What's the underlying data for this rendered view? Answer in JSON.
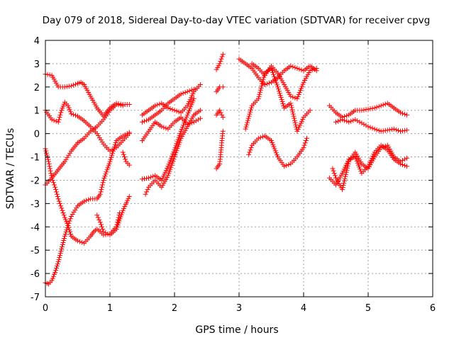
{
  "chart_data": {
    "type": "scatter",
    "title": "Day 079 of 2018, Sidereal Day-to-day VTEC variation (SDTVAR) for receiver cpvg",
    "xlabel": "GPS time / hours",
    "ylabel": "SDTVAR / TECUs",
    "xlim": [
      0,
      6
    ],
    "ylim": [
      -7,
      4
    ],
    "xticks": [
      0,
      1,
      2,
      3,
      4,
      5,
      6
    ],
    "yticks": [
      -7,
      -6,
      -5,
      -4,
      -3,
      -2,
      -1,
      0,
      1,
      2,
      3,
      4
    ],
    "grid": true,
    "marker": "+",
    "color": "#ff0000",
    "series": [
      {
        "x": [
          0.0,
          0.1,
          0.2,
          0.3,
          0.4,
          0.5,
          0.55,
          0.6,
          0.7,
          0.8,
          0.9,
          1.0,
          1.1,
          1.2,
          1.3
        ],
        "y": [
          2.55,
          2.5,
          2.0,
          2.0,
          2.05,
          2.15,
          2.2,
          2.1,
          1.6,
          1.1,
          0.75,
          1.1,
          1.3,
          1.25,
          1.25
        ]
      },
      {
        "x": [
          0.0,
          0.1,
          0.2,
          0.25,
          0.3,
          0.35,
          0.4,
          0.5,
          0.6,
          0.7,
          0.8,
          0.9,
          1.0,
          1.1,
          1.2,
          1.3
        ],
        "y": [
          1.0,
          0.6,
          0.5,
          1.0,
          1.35,
          1.2,
          0.85,
          0.75,
          0.55,
          0.3,
          0.0,
          -0.45,
          -0.75,
          -0.6,
          -0.3,
          0.0
        ]
      },
      {
        "x": [
          0.0,
          0.1,
          0.2,
          0.3,
          0.4,
          0.5,
          0.6,
          0.7,
          0.8,
          0.9,
          1.0,
          1.1,
          1.2
        ],
        "y": [
          -2.2,
          -1.9,
          -1.55,
          -1.2,
          -0.75,
          -0.4,
          -0.2,
          0.1,
          0.3,
          0.6,
          1.0,
          1.25,
          1.2
        ]
      },
      {
        "x": [
          0.0,
          0.05,
          0.1,
          0.15,
          0.2,
          0.25,
          0.3,
          0.35,
          0.4,
          0.5,
          0.6,
          0.7,
          0.75,
          0.8,
          0.85,
          0.9,
          1.0,
          1.1,
          1.15
        ],
        "y": [
          -0.65,
          -1.2,
          -1.9,
          -2.3,
          -2.8,
          -3.2,
          -3.6,
          -3.95,
          -4.4,
          -4.6,
          -4.7,
          -4.4,
          -4.2,
          -4.1,
          -4.2,
          -4.35,
          -4.3,
          -4.0,
          -3.4
        ]
      },
      {
        "x": [
          0.0,
          0.05,
          0.1,
          0.15,
          0.2,
          0.25,
          0.3,
          0.35,
          0.4,
          0.5,
          0.6,
          0.7,
          0.8,
          0.85,
          0.9,
          1.0,
          1.1,
          1.2,
          1.3
        ],
        "y": [
          -6.4,
          -6.45,
          -6.3,
          -5.95,
          -5.5,
          -4.95,
          -4.4,
          -3.95,
          -3.55,
          -3.1,
          -2.9,
          -2.8,
          -2.8,
          -2.6,
          -2.0,
          -1.2,
          -0.3,
          -0.1,
          0.05
        ]
      },
      {
        "x": [
          1.2,
          1.25,
          1.3
        ],
        "y": [
          -0.8,
          -1.2,
          -1.35
        ]
      },
      {
        "x": [
          0.8,
          0.85,
          0.9,
          1.0,
          1.1,
          1.2,
          1.3
        ],
        "y": [
          -3.5,
          -3.8,
          -4.2,
          -4.35,
          -4.1,
          -3.3,
          -2.7
        ]
      },
      {
        "x": [
          1.5,
          1.6,
          1.7,
          1.8,
          1.9,
          2.0,
          2.1,
          2.2,
          2.3,
          2.4
        ],
        "y": [
          0.8,
          1.0,
          1.2,
          1.3,
          1.1,
          1.0,
          0.9,
          1.2,
          1.8,
          2.1
        ]
      },
      {
        "x": [
          1.5,
          1.6,
          1.7,
          1.8,
          1.9,
          2.0,
          2.1,
          2.2,
          2.3
        ],
        "y": [
          0.5,
          0.6,
          0.8,
          1.0,
          1.3,
          1.5,
          1.7,
          1.8,
          1.9
        ]
      },
      {
        "x": [
          1.5,
          1.6,
          1.7,
          1.8,
          1.9,
          2.0,
          2.1,
          2.2,
          2.3,
          2.4
        ],
        "y": [
          -0.3,
          0.1,
          0.5,
          0.3,
          0.2,
          0.5,
          0.7,
          0.4,
          0.5,
          0.65
        ]
      },
      {
        "x": [
          1.55,
          1.6,
          1.7,
          1.8,
          1.9,
          2.0,
          2.1,
          2.2,
          2.3,
          2.4
        ],
        "y": [
          -2.6,
          -2.3,
          -2.0,
          -2.3,
          -1.8,
          -1.0,
          -0.2,
          0.3,
          0.8,
          1.0
        ]
      },
      {
        "x": [
          1.5,
          1.6,
          1.7,
          1.8,
          1.9,
          2.0,
          2.1,
          2.2,
          2.3
        ],
        "y": [
          -1.95,
          -1.9,
          -1.8,
          -2.0,
          -1.4,
          -0.7,
          0.1,
          0.8,
          1.5
        ]
      },
      {
        "x": [
          2.65,
          2.7,
          2.75
        ],
        "y": [
          2.75,
          3.0,
          3.4
        ]
      },
      {
        "x": [
          2.65,
          2.7,
          2.75
        ],
        "y": [
          1.8,
          2.0,
          2.0
        ]
      },
      {
        "x": [
          2.65,
          2.7,
          2.75
        ],
        "y": [
          0.8,
          1.0,
          0.7
        ]
      },
      {
        "x": [
          2.65,
          2.7,
          2.75
        ],
        "y": [
          -1.5,
          -1.3,
          0.1
        ]
      },
      {
        "x": [
          3.0,
          3.1,
          3.2,
          3.3,
          3.4,
          3.5,
          3.6,
          3.7,
          3.8,
          3.9,
          4.0,
          4.1,
          4.2
        ],
        "y": [
          3.2,
          3.0,
          2.8,
          2.4,
          2.1,
          2.2,
          2.4,
          2.7,
          2.9,
          2.8,
          2.7,
          2.9,
          2.7
        ]
      },
      {
        "x": [
          3.2,
          3.3,
          3.4,
          3.5,
          3.6,
          3.7,
          3.8,
          3.9,
          4.0,
          4.1,
          4.2
        ],
        "y": [
          3.0,
          2.8,
          2.5,
          2.9,
          2.6,
          2.1,
          1.6,
          1.5,
          2.2,
          2.7,
          2.8
        ]
      },
      {
        "x": [
          3.1,
          3.2,
          3.3,
          3.4,
          3.5,
          3.6,
          3.7,
          3.8,
          3.9,
          4.0,
          4.1
        ],
        "y": [
          0.2,
          1.2,
          1.5,
          2.6,
          2.8,
          2.0,
          1.1,
          1.3,
          0.1,
          0.7,
          1.0
        ]
      },
      {
        "x": [
          3.15,
          3.2,
          3.3,
          3.4,
          3.5,
          3.6,
          3.7,
          3.8,
          3.9,
          4.0,
          4.05
        ],
        "y": [
          -0.9,
          -0.5,
          -0.2,
          -0.1,
          -0.3,
          -1.0,
          -1.4,
          -1.3,
          -1.0,
          -0.6,
          -0.2
        ]
      },
      {
        "x": [
          4.4,
          4.5,
          4.6,
          4.7,
          4.8,
          4.9,
          5.0,
          5.1,
          5.2,
          5.3,
          5.4,
          5.5,
          5.6
        ],
        "y": [
          1.2,
          0.9,
          0.7,
          0.8,
          1.0,
          1.0,
          1.05,
          1.1,
          1.2,
          1.3,
          1.1,
          0.9,
          0.8
        ]
      },
      {
        "x": [
          4.5,
          4.6,
          4.7,
          4.8,
          4.9,
          5.0,
          5.1,
          5.2,
          5.3,
          5.4,
          5.5,
          5.6
        ],
        "y": [
          0.5,
          0.6,
          0.5,
          0.6,
          0.45,
          0.3,
          0.2,
          0.1,
          0.15,
          0.2,
          0.1,
          0.15
        ]
      },
      {
        "x": [
          4.4,
          4.5,
          4.6,
          4.7,
          4.8,
          4.9,
          5.0,
          5.1,
          5.2,
          5.3,
          5.4,
          5.5,
          5.6
        ],
        "y": [
          -1.9,
          -2.2,
          -1.7,
          -1.1,
          -1.0,
          -1.7,
          -1.4,
          -0.8,
          -0.5,
          -0.7,
          -1.1,
          -1.3,
          -1.4
        ]
      },
      {
        "x": [
          4.45,
          4.5,
          4.6,
          4.7,
          4.8,
          4.9,
          5.0,
          5.1,
          5.2,
          5.3,
          5.4,
          5.5,
          5.6
        ],
        "y": [
          -1.5,
          -1.9,
          -2.4,
          -1.2,
          -0.8,
          -1.3,
          -1.5,
          -1.0,
          -0.6,
          -0.5,
          -1.0,
          -1.2,
          -1.05
        ]
      }
    ]
  }
}
